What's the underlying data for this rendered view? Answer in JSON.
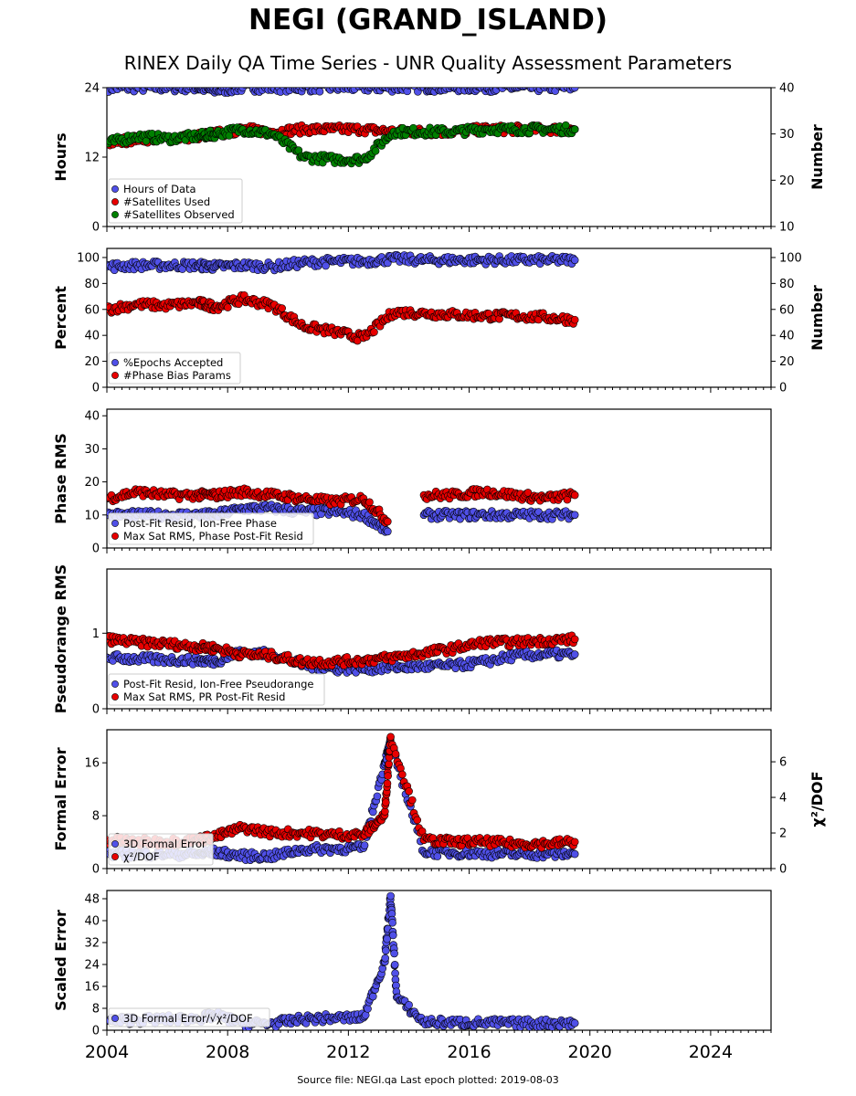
{
  "title": "NEGI (GRAND_ISLAND)",
  "subtitle": "RINEX Daily QA Time Series - UNR Quality Assessment Parameters",
  "footer": "Source file: NEGI.qa Last epoch plotted: 2019-08-03",
  "colors": {
    "blue": "#5050e8",
    "red": "#e80000",
    "green": "#008000",
    "edge": "#000000"
  },
  "chart_data": [
    {
      "type": "scatter",
      "ylabel": "Hours",
      "ylabel_right": "Number",
      "xlim": [
        2004,
        2026
      ],
      "ylim": [
        0,
        24
      ],
      "yticks": [
        0,
        12,
        24
      ],
      "ylim_right": [
        10,
        40
      ],
      "yticks_right": [
        10,
        20,
        30,
        40
      ],
      "legend_position": "lower-left",
      "series": [
        {
          "name": "Hours of Data",
          "color": "blue",
          "axis": "left",
          "x": [
            2004.0,
            2005.0,
            2006.0,
            2007.0,
            2007.6,
            2008.5,
            2009.5,
            2010.5,
            2011.5,
            2012.5,
            2013.5,
            2014.5,
            2015.5,
            2016.5,
            2017.5,
            2018.5,
            2019.5
          ],
          "y": [
            24,
            24,
            24,
            24,
            23.5,
            24,
            24,
            24,
            24,
            24,
            24,
            24,
            24,
            24,
            24,
            24,
            24
          ]
        },
        {
          "name": "#Satellites Used",
          "color": "red",
          "axis": "right",
          "x": [
            2004.0,
            2005.0,
            2006.0,
            2007.0,
            2007.6,
            2008.5,
            2009.5,
            2010.5,
            2011.5,
            2012.5,
            2013.5,
            2014.5,
            2015.5,
            2016.5,
            2017.5,
            2018.5,
            2019.5
          ],
          "y": [
            28,
            29,
            29,
            29.5,
            30,
            31,
            30.5,
            31,
            31,
            31,
            30.5,
            30.5,
            30.5,
            31,
            31,
            31,
            31
          ]
        },
        {
          "name": "#Satellites Observed",
          "color": "green",
          "axis": "right",
          "x": [
            2004.0,
            2005.0,
            2006.0,
            2007.0,
            2007.6,
            2008.5,
            2009.5,
            2010.5,
            2011.5,
            2012.5,
            2013.5,
            2014.5,
            2015.5,
            2016.5,
            2017.5,
            2018.5,
            2019.5
          ],
          "y": [
            28,
            29.5,
            29,
            29.5,
            30,
            31,
            30,
            25,
            24.5,
            24.5,
            30.5,
            30.5,
            30.5,
            31,
            31,
            31,
            31
          ]
        }
      ]
    },
    {
      "type": "scatter",
      "ylabel": "Percent",
      "ylabel_right": "Number",
      "xlim": [
        2004,
        2026
      ],
      "ylim": [
        0,
        107
      ],
      "yticks": [
        0,
        20,
        40,
        60,
        80,
        100
      ],
      "ylim_right": [
        0,
        107
      ],
      "yticks_right": [
        0,
        20,
        40,
        60,
        80,
        100
      ],
      "legend_position": "lower-left",
      "series": [
        {
          "name": "%Epochs Accepted",
          "color": "blue",
          "axis": "left",
          "x": [
            2004.0,
            2005.0,
            2006.0,
            2007.0,
            2007.6,
            2008.5,
            2009.5,
            2010.5,
            2011.5,
            2012.5,
            2013.5,
            2014.5,
            2015.5,
            2016.5,
            2017.5,
            2018.5,
            2019.5
          ],
          "y": [
            93,
            94,
            94,
            94,
            93,
            94,
            93,
            96,
            97,
            97,
            99,
            98,
            98,
            98,
            98,
            98,
            98
          ]
        },
        {
          "name": "#Phase Bias Params",
          "color": "red",
          "axis": "right",
          "x": [
            2004.0,
            2005.0,
            2006.0,
            2007.0,
            2007.6,
            2008.5,
            2009.5,
            2010.5,
            2011.5,
            2012.5,
            2013.5,
            2014.5,
            2015.5,
            2016.5,
            2017.5,
            2018.5,
            2019.5
          ],
          "y": [
            60,
            64,
            63,
            65,
            62,
            68,
            63,
            47,
            43,
            38,
            58,
            57,
            56,
            55,
            55,
            54,
            52
          ]
        }
      ]
    },
    {
      "type": "scatter",
      "ylabel": "Phase RMS",
      "xlim": [
        2004,
        2026
      ],
      "ylim": [
        0,
        42
      ],
      "yticks": [
        0,
        10,
        20,
        30,
        40
      ],
      "legend_position": "lower-left",
      "series": [
        {
          "name": "Post-Fit Resid, Ion-Free Phase",
          "color": "blue",
          "axis": "left",
          "x": [
            2004.0,
            2005.0,
            2006.0,
            2007.0,
            2007.6,
            2008.5,
            2009.5,
            2010.5,
            2011.5,
            2012.5,
            2013.3,
            2014.5,
            2015.5,
            2016.5,
            2017.5,
            2018.5,
            2019.5
          ],
          "y": [
            10,
            10,
            10,
            10,
            10,
            12,
            12,
            11,
            11,
            10,
            5,
            10,
            10,
            10,
            10,
            10,
            10
          ]
        },
        {
          "name": "Max Sat RMS, Phase Post-Fit Resid",
          "color": "red",
          "axis": "left",
          "x": [
            2004.0,
            2005.0,
            2006.0,
            2007.0,
            2007.6,
            2008.5,
            2009.5,
            2010.5,
            2011.5,
            2012.5,
            2013.3,
            2014.5,
            2015.5,
            2016.5,
            2017.5,
            2018.5,
            2019.5
          ],
          "y": [
            15,
            17,
            16,
            16,
            16,
            17,
            16,
            15,
            14,
            15,
            8,
            16,
            16,
            17,
            16,
            15,
            16
          ]
        }
      ]
    },
    {
      "type": "scatter",
      "ylabel": "Pseudorange RMS",
      "xlim": [
        2004,
        2026
      ],
      "ylim": [
        0,
        1.85
      ],
      "yticks": [
        0,
        1
      ],
      "legend_position": "lower-left",
      "series": [
        {
          "name": "Post-Fit Resid, Ion-Free Pseudorange",
          "color": "blue",
          "axis": "left",
          "x": [
            2004.0,
            2005.0,
            2006.0,
            2007.0,
            2007.6,
            2008.5,
            2009.5,
            2010.5,
            2011.5,
            2012.5,
            2013.5,
            2014.5,
            2015.5,
            2016.5,
            2017.5,
            2018.5,
            2019.5
          ],
          "y": [
            0.68,
            0.66,
            0.65,
            0.64,
            0.63,
            0.75,
            0.72,
            0.58,
            0.53,
            0.53,
            0.55,
            0.56,
            0.57,
            0.62,
            0.7,
            0.72,
            0.72
          ]
        },
        {
          "name": "Max Sat RMS, PR Post-Fit Resid",
          "color": "red",
          "axis": "left",
          "x": [
            2004.0,
            2005.0,
            2006.0,
            2007.0,
            2007.6,
            2008.5,
            2009.5,
            2010.5,
            2011.5,
            2012.5,
            2013.5,
            2014.5,
            2015.5,
            2016.5,
            2017.5,
            2018.5,
            2019.5
          ],
          "y": [
            0.92,
            0.88,
            0.86,
            0.82,
            0.8,
            0.72,
            0.7,
            0.62,
            0.62,
            0.64,
            0.68,
            0.74,
            0.8,
            0.88,
            0.88,
            0.9,
            0.92
          ]
        }
      ]
    },
    {
      "type": "scatter",
      "ylabel": "Formal Error",
      "ylabel_right": "χ²/DOF",
      "xlim": [
        2004,
        2026
      ],
      "ylim": [
        0,
        21
      ],
      "yticks": [
        0,
        8,
        16
      ],
      "ylim_right": [
        0,
        7.8
      ],
      "yticks_right": [
        0,
        2,
        4,
        6
      ],
      "legend_position": "lower-left",
      "series": [
        {
          "name": "3D Formal Error",
          "color": "blue",
          "axis": "left",
          "x": [
            2004.0,
            2005.0,
            2006.0,
            2007.0,
            2007.6,
            2008.5,
            2009.5,
            2010.5,
            2011.5,
            2012.5,
            2013.2,
            2013.4,
            2014.5,
            2015.5,
            2016.5,
            2017.5,
            2018.5,
            2019.5
          ],
          "y": [
            2.2,
            2.2,
            2.2,
            2.2,
            2.5,
            1.9,
            1.9,
            2.9,
            3.0,
            3.1,
            16,
            19,
            2.5,
            2.4,
            2.3,
            2.2,
            2.2,
            2.2
          ]
        },
        {
          "name": "χ²/DOF",
          "color": "red",
          "axis": "right",
          "x": [
            2004.0,
            2005.0,
            2006.0,
            2007.0,
            2007.6,
            2008.5,
            2009.5,
            2010.5,
            2011.5,
            2012.5,
            2013.2,
            2013.4,
            2014.5,
            2015.5,
            2016.5,
            2017.5,
            2018.5,
            2019.5
          ],
          "y": [
            1.6,
            1.5,
            1.5,
            1.6,
            1.8,
            2.3,
            2.0,
            2.0,
            1.9,
            1.9,
            3.0,
            7.4,
            1.6,
            1.5,
            1.5,
            1.4,
            1.4,
            1.5
          ]
        }
      ]
    },
    {
      "type": "scatter",
      "ylabel": "Scaled Error",
      "xlabel_ticks": [
        "2004",
        "2008",
        "2012",
        "2016",
        "2020",
        "2024"
      ],
      "xlim": [
        2004,
        2026
      ],
      "ylim": [
        0,
        51
      ],
      "yticks": [
        0,
        8,
        16,
        24,
        32,
        40,
        48
      ],
      "legend_position": "lower-left",
      "series": [
        {
          "name": "3D Formal Error/√χ²/DOF",
          "color": "blue",
          "axis": "left",
          "x": [
            2004.0,
            2005.0,
            2006.0,
            2007.0,
            2007.6,
            2008.5,
            2009.5,
            2010.5,
            2011.5,
            2012.5,
            2013.2,
            2013.4,
            2013.6,
            2014.5,
            2015.5,
            2016.5,
            2017.5,
            2018.5,
            2019.5
          ],
          "y": [
            3.5,
            3.8,
            4.0,
            4.2,
            5.5,
            2.5,
            2.5,
            4.0,
            4.5,
            4.6,
            25,
            49,
            12,
            3.0,
            2.8,
            2.7,
            2.6,
            2.6,
            2.6
          ]
        }
      ]
    }
  ]
}
